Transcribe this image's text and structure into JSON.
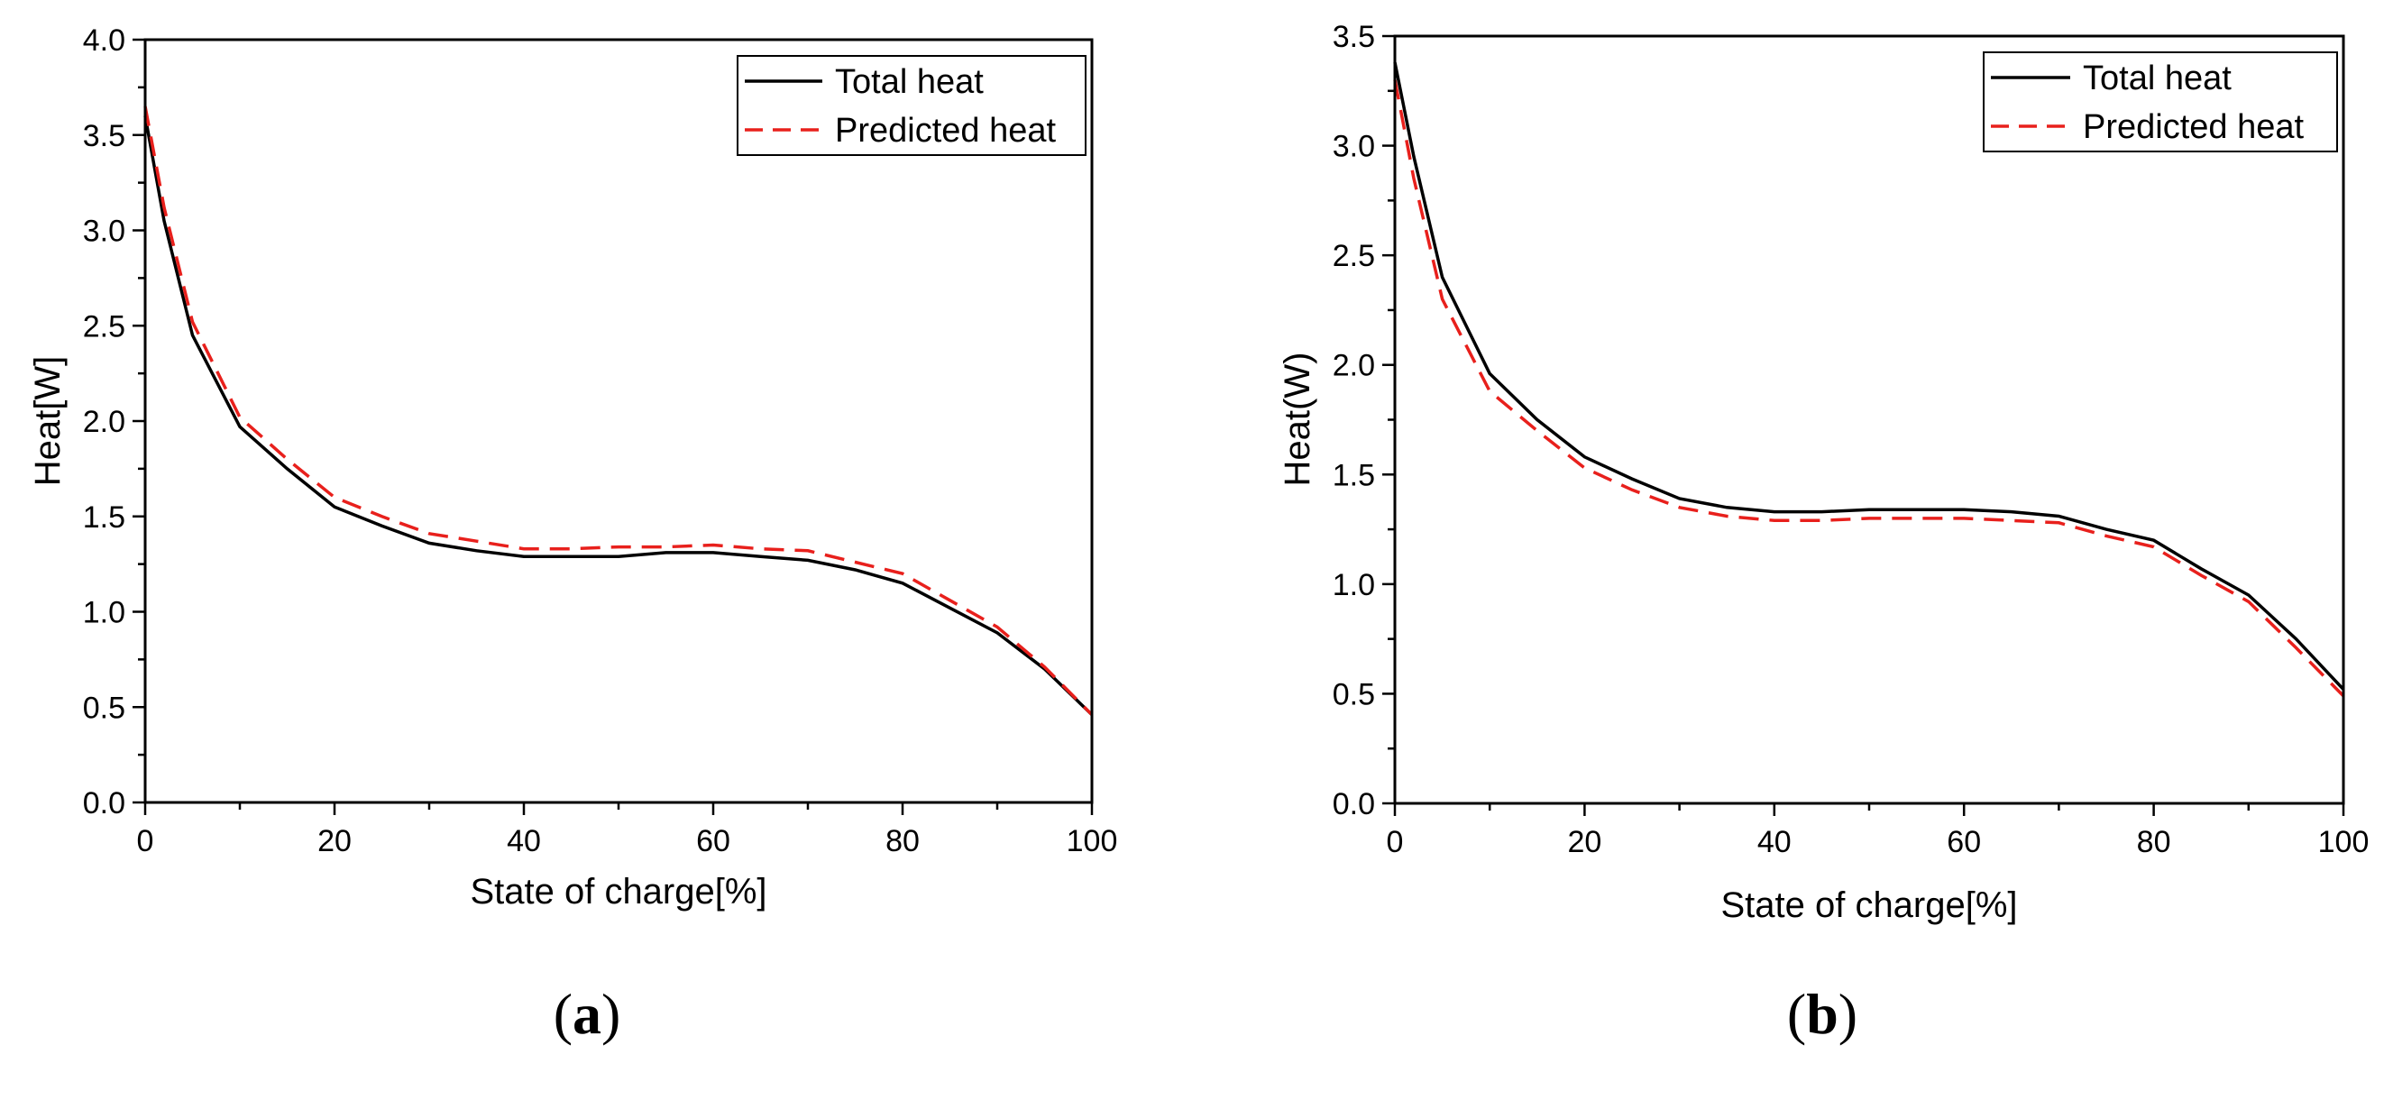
{
  "chart_data": [
    {
      "type": "line",
      "panel_label": "(a)",
      "panel_letter": "a",
      "xlabel": "State of charge[%]",
      "ylabel": "Heat[W]",
      "xlim": [
        0,
        100
      ],
      "ylim": [
        0,
        4.0
      ],
      "xticks": [
        0,
        20,
        40,
        60,
        80,
        100
      ],
      "xtick_labels": [
        "0",
        "20",
        "40",
        "60",
        "80",
        "100"
      ],
      "yticks": [
        0,
        0.5,
        1.0,
        1.5,
        2.0,
        2.5,
        3.0,
        3.5,
        4.0
      ],
      "ytick_labels": [
        "0.0",
        "0.5",
        "1.0",
        "1.5",
        "2.0",
        "2.5",
        "3.0",
        "3.5",
        "4.0"
      ],
      "legend_position": "top-right",
      "series": [
        {
          "name": "Total heat",
          "color": "#000000",
          "dash": "solid",
          "x": [
            0,
            2,
            5,
            10,
            15,
            20,
            25,
            30,
            35,
            40,
            45,
            50,
            55,
            60,
            65,
            70,
            75,
            80,
            85,
            90,
            95,
            100
          ],
          "y": [
            3.6,
            3.05,
            2.45,
            1.97,
            1.75,
            1.55,
            1.45,
            1.36,
            1.32,
            1.29,
            1.29,
            1.29,
            1.31,
            1.31,
            1.29,
            1.27,
            1.22,
            1.15,
            1.02,
            0.89,
            0.7,
            0.46
          ]
        },
        {
          "name": "Predicted heat",
          "color": "#e8201c",
          "dash": "dashed",
          "x": [
            0,
            2,
            5,
            10,
            15,
            20,
            25,
            30,
            35,
            40,
            45,
            50,
            55,
            60,
            65,
            70,
            75,
            80,
            85,
            90,
            95,
            100
          ],
          "y": [
            3.65,
            3.12,
            2.52,
            2.02,
            1.8,
            1.6,
            1.5,
            1.41,
            1.37,
            1.33,
            1.33,
            1.34,
            1.34,
            1.35,
            1.33,
            1.32,
            1.26,
            1.2,
            1.06,
            0.92,
            0.71,
            0.46
          ]
        }
      ]
    },
    {
      "type": "line",
      "panel_label": "(b)",
      "panel_letter": "b",
      "xlabel": "State of charge[%]",
      "ylabel": "Heat(W)",
      "xlim": [
        0,
        100
      ],
      "ylim": [
        0,
        3.5
      ],
      "xticks": [
        0,
        20,
        40,
        60,
        80,
        100
      ],
      "xtick_labels": [
        "0",
        "20",
        "40",
        "60",
        "80",
        "100"
      ],
      "yticks": [
        0,
        0.5,
        1.0,
        1.5,
        2.0,
        2.5,
        3.0,
        3.5
      ],
      "ytick_labels": [
        "0.0",
        "0.5",
        "1.0",
        "1.5",
        "2.0",
        "2.5",
        "3.0",
        "3.5"
      ],
      "legend_position": "top-right",
      "series": [
        {
          "name": "Total heat",
          "color": "#000000",
          "dash": "solid",
          "x": [
            0,
            2,
            5,
            10,
            15,
            20,
            25,
            30,
            35,
            40,
            45,
            50,
            55,
            60,
            65,
            70,
            75,
            80,
            85,
            90,
            95,
            100
          ],
          "y": [
            3.38,
            2.95,
            2.4,
            1.96,
            1.75,
            1.58,
            1.48,
            1.39,
            1.35,
            1.33,
            1.33,
            1.34,
            1.34,
            1.34,
            1.33,
            1.31,
            1.25,
            1.2,
            1.07,
            0.95,
            0.75,
            0.52
          ]
        },
        {
          "name": "Predicted heat",
          "color": "#e8201c",
          "dash": "dashed",
          "x": [
            0,
            2,
            5,
            10,
            15,
            20,
            25,
            30,
            35,
            40,
            45,
            50,
            55,
            60,
            65,
            70,
            75,
            80,
            85,
            90,
            95,
            100
          ],
          "y": [
            3.3,
            2.85,
            2.3,
            1.88,
            1.7,
            1.53,
            1.43,
            1.35,
            1.31,
            1.29,
            1.29,
            1.3,
            1.3,
            1.3,
            1.29,
            1.28,
            1.22,
            1.17,
            1.04,
            0.92,
            0.71,
            0.49
          ]
        }
      ]
    }
  ]
}
